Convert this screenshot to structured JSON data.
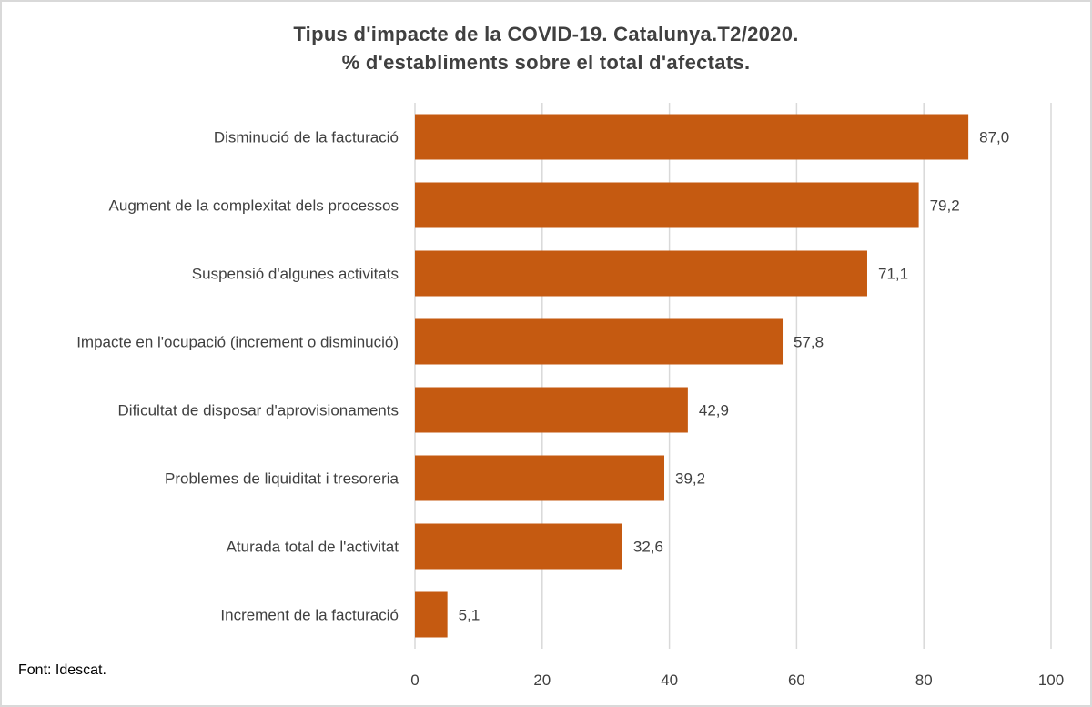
{
  "chart_data": {
    "type": "bar",
    "orientation": "horizontal",
    "title_line1": "Tipus d'impacte de la COVID-19. Catalunya.T2/2020.",
    "title_line2": "% d'establiments sobre el total d'afectats.",
    "categories": [
      "Disminució de la facturació",
      "Augment de la complexitat dels processos",
      "Suspensió d'algunes activitats",
      "Impacte en l'ocupació (increment o disminució)",
      "Dificultat de disposar d'aprovisionaments",
      "Problemes de liquiditat i tresoreria",
      "Aturada total de l'activitat",
      "Increment de la facturació"
    ],
    "values": [
      87.0,
      79.2,
      71.1,
      57.8,
      42.9,
      39.2,
      32.6,
      5.1
    ],
    "value_labels": [
      "87,0",
      "79,2",
      "71,1",
      "57,8",
      "42,9",
      "39,2",
      "32,6",
      "5,1"
    ],
    "xlim": [
      0,
      100
    ],
    "xticks": [
      "0",
      "20",
      "40",
      "60",
      "80",
      "100"
    ],
    "bar_color": "#c55a11",
    "grid": true
  },
  "source": "Font: Idescat."
}
